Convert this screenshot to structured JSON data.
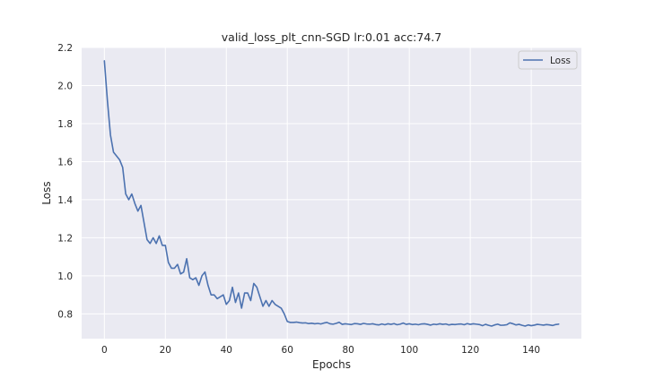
{
  "chart_data": {
    "type": "line",
    "title": "valid_loss_plt_cnn-SGD lr:0.01 acc:74.7",
    "xlabel": "Epochs",
    "ylabel": "Loss",
    "xlim": [
      -7.45,
      156.45
    ],
    "ylim": [
      0.67,
      2.2
    ],
    "xticks": [
      0,
      20,
      40,
      60,
      80,
      100,
      120,
      140
    ],
    "yticks": [
      0.8,
      1.0,
      1.2,
      1.4,
      1.6,
      1.8,
      2.0,
      2.2
    ],
    "xtick_labels": [
      "0",
      "20",
      "40",
      "60",
      "80",
      "100",
      "120",
      "140"
    ],
    "ytick_labels": [
      "0.8",
      "1.0",
      "1.2",
      "1.4",
      "1.6",
      "1.8",
      "2.0",
      "2.2"
    ],
    "grid": true,
    "legend_position": "top-right",
    "colors": {
      "line": "#4c72b0",
      "background": "#eaeaf2",
      "grid": "#ffffff"
    },
    "series": [
      {
        "name": "Loss",
        "x": [
          0,
          1,
          2,
          3,
          4,
          5,
          6,
          7,
          8,
          9,
          10,
          11,
          12,
          13,
          14,
          15,
          16,
          17,
          18,
          19,
          20,
          21,
          22,
          23,
          24,
          25,
          26,
          27,
          28,
          29,
          30,
          31,
          32,
          33,
          34,
          35,
          36,
          37,
          38,
          39,
          40,
          41,
          42,
          43,
          44,
          45,
          46,
          47,
          48,
          49,
          50,
          51,
          52,
          53,
          54,
          55,
          56,
          57,
          58,
          59,
          60,
          61,
          62,
          63,
          64,
          65,
          66,
          67,
          68,
          69,
          70,
          71,
          72,
          73,
          74,
          75,
          76,
          77,
          78,
          79,
          80,
          81,
          82,
          83,
          84,
          85,
          86,
          87,
          88,
          89,
          90,
          91,
          92,
          93,
          94,
          95,
          96,
          97,
          98,
          99,
          100,
          101,
          102,
          103,
          104,
          105,
          106,
          107,
          108,
          109,
          110,
          111,
          112,
          113,
          114,
          115,
          116,
          117,
          118,
          119,
          120,
          121,
          122,
          123,
          124,
          125,
          126,
          127,
          128,
          129,
          130,
          131,
          132,
          133,
          134,
          135,
          136,
          137,
          138,
          139,
          140,
          141,
          142,
          143,
          144,
          145,
          146,
          147,
          148,
          149
        ],
        "values": [
          2.13,
          1.92,
          1.74,
          1.65,
          1.63,
          1.61,
          1.57,
          1.43,
          1.4,
          1.43,
          1.38,
          1.34,
          1.37,
          1.28,
          1.19,
          1.17,
          1.2,
          1.17,
          1.21,
          1.16,
          1.16,
          1.07,
          1.04,
          1.04,
          1.06,
          1.01,
          1.02,
          1.09,
          0.99,
          0.98,
          0.99,
          0.95,
          1.0,
          1.02,
          0.95,
          0.9,
          0.9,
          0.88,
          0.89,
          0.9,
          0.85,
          0.87,
          0.94,
          0.86,
          0.91,
          0.83,
          0.91,
          0.91,
          0.87,
          0.96,
          0.94,
          0.89,
          0.84,
          0.87,
          0.84,
          0.87,
          0.85,
          0.84,
          0.83,
          0.8,
          0.76,
          0.755,
          0.755,
          0.757,
          0.754,
          0.752,
          0.753,
          0.749,
          0.751,
          0.748,
          0.75,
          0.747,
          0.752,
          0.755,
          0.748,
          0.746,
          0.75,
          0.756,
          0.745,
          0.748,
          0.746,
          0.744,
          0.749,
          0.748,
          0.745,
          0.75,
          0.747,
          0.746,
          0.748,
          0.744,
          0.742,
          0.747,
          0.743,
          0.748,
          0.745,
          0.749,
          0.743,
          0.746,
          0.752,
          0.745,
          0.748,
          0.744,
          0.746,
          0.743,
          0.747,
          0.748,
          0.745,
          0.741,
          0.746,
          0.744,
          0.748,
          0.745,
          0.747,
          0.742,
          0.745,
          0.744,
          0.746,
          0.747,
          0.743,
          0.749,
          0.745,
          0.748,
          0.746,
          0.744,
          0.738,
          0.745,
          0.74,
          0.736,
          0.742,
          0.746,
          0.74,
          0.741,
          0.743,
          0.753,
          0.748,
          0.742,
          0.745,
          0.74,
          0.736,
          0.742,
          0.738,
          0.741,
          0.745,
          0.743,
          0.741,
          0.744,
          0.742,
          0.739,
          0.744,
          0.746
        ]
      }
    ]
  }
}
